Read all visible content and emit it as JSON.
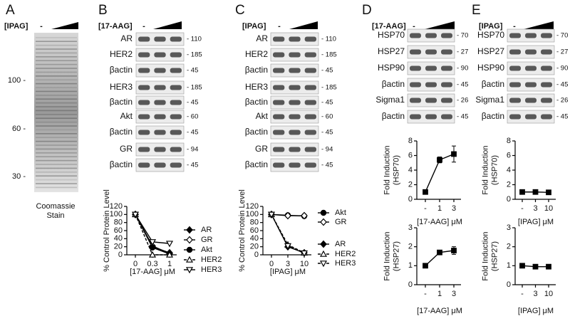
{
  "panel_a": {
    "letter": "A",
    "treatment": "[IPAG]",
    "control": "-",
    "markers": [
      "100 -",
      "60 -",
      "30 -"
    ],
    "caption": [
      "Coomassie",
      "Stain"
    ]
  },
  "panel_b": {
    "letter": "B",
    "treatment": "[17-AAG]",
    "control": "-",
    "blots": [
      {
        "label": "AR",
        "mw": "- 110"
      },
      {
        "label": "HER2",
        "mw": "- 185"
      },
      {
        "label": "βactin",
        "mw": "- 45"
      },
      {
        "label": "HER3",
        "mw": "- 185"
      },
      {
        "label": "βactin",
        "mw": "- 45"
      },
      {
        "label": "Akt",
        "mw": "- 60"
      },
      {
        "label": "βactin",
        "mw": "- 45"
      },
      {
        "label": "GR",
        "mw": "- 94"
      },
      {
        "label": "βactin",
        "mw": "- 45"
      }
    ]
  },
  "panel_c": {
    "letter": "C",
    "treatment": "[IPAG]",
    "control": "-",
    "blots": [
      {
        "label": "AR",
        "mw": "- 110"
      },
      {
        "label": "HER2",
        "mw": "- 185"
      },
      {
        "label": "βactin",
        "mw": "- 45"
      },
      {
        "label": "HER3",
        "mw": "- 185"
      },
      {
        "label": "βactin",
        "mw": "- 45"
      },
      {
        "label": "Akt",
        "mw": "- 60"
      },
      {
        "label": "βactin",
        "mw": "- 45"
      },
      {
        "label": "GR",
        "mw": "- 94"
      },
      {
        "label": "βactin",
        "mw": "- 45"
      }
    ]
  },
  "panel_d": {
    "letter": "D",
    "treatment": "[17-AAG]",
    "control": "-",
    "blots": [
      {
        "label": "HSP70",
        "mw": "- 70"
      },
      {
        "label": "HSP27",
        "mw": "- 27"
      },
      {
        "label": "HSP90",
        "mw": "- 90"
      },
      {
        "label": "βactin",
        "mw": "- 45"
      },
      {
        "label": "Sigma1",
        "mw": "- 26"
      },
      {
        "label": "βactin",
        "mw": "- 45"
      }
    ]
  },
  "panel_e": {
    "letter": "E",
    "treatment": "[IPAG]",
    "control": "-",
    "blots": [
      {
        "label": "HSP70",
        "mw": "- 70"
      },
      {
        "label": "HSP27",
        "mw": "- 27"
      },
      {
        "label": "HSP90",
        "mw": "- 90"
      },
      {
        "label": "βactin",
        "mw": "- 45"
      },
      {
        "label": "Sigma1",
        "mw": "- 26"
      },
      {
        "label": "βactin",
        "mw": "- 45"
      }
    ]
  },
  "chart_data": [
    {
      "type": "line",
      "ylabel": "% Control Protein Level",
      "xlabel": "[17-AAG] μM",
      "categories": [
        "0",
        "0.3",
        "1"
      ],
      "ylim": [
        0,
        120
      ],
      "yticks": [
        0,
        20,
        40,
        60,
        80,
        100,
        120
      ],
      "series": [
        {
          "name": "AR",
          "color": "#000000",
          "marker": "diamond",
          "filled": true,
          "dashed": false,
          "values": [
            100,
            20,
            5
          ]
        },
        {
          "name": "GR",
          "color": "#000000",
          "marker": "diamond",
          "filled": false,
          "dashed": false,
          "values": [
            100,
            22,
            3
          ]
        },
        {
          "name": "Akt",
          "color": "#000000",
          "marker": "circle",
          "filled": true,
          "dashed": false,
          "values": [
            100,
            18,
            2
          ]
        },
        {
          "name": "HER2",
          "color": "#000000",
          "marker": "triangle",
          "filled": false,
          "dashed": true,
          "values": [
            100,
            0,
            0
          ]
        },
        {
          "name": "HER3",
          "color": "#000000",
          "marker": "triangle-down",
          "filled": false,
          "dashed": false,
          "values": [
            100,
            32,
            28
          ]
        }
      ]
    },
    {
      "type": "line",
      "ylabel": "% Control Protein Level",
      "xlabel": "[IPAG] μM",
      "categories": [
        "0",
        "3",
        "10"
      ],
      "ylim": [
        0,
        120
      ],
      "yticks": [
        0,
        20,
        40,
        60,
        80,
        100,
        120
      ],
      "series": [
        {
          "name": "Akt",
          "color": "#000000",
          "marker": "circle",
          "filled": true,
          "dashed": false,
          "values": [
            100,
            98,
            96
          ]
        },
        {
          "name": "GR",
          "color": "#000000",
          "marker": "diamond",
          "filled": false,
          "dashed": false,
          "values": [
            100,
            97,
            97
          ]
        },
        {
          "name": "AR",
          "color": "#000000",
          "marker": "diamond",
          "filled": true,
          "dashed": false,
          "values": [
            100,
            20,
            5
          ]
        },
        {
          "name": "HER2",
          "color": "#000000",
          "marker": "triangle",
          "filled": false,
          "dashed": true,
          "values": [
            100,
            25,
            5
          ]
        },
        {
          "name": "HER3",
          "color": "#000000",
          "marker": "triangle-down",
          "filled": false,
          "dashed": true,
          "values": [
            100,
            22,
            4
          ]
        }
      ]
    },
    {
      "type": "line",
      "ylabel": [
        "Fold Induction",
        "(HSP70)"
      ],
      "xlabel": "[17-AAG] μM",
      "categories": [
        "-",
        "1",
        "3"
      ],
      "ylim": [
        0,
        8
      ],
      "yticks": [
        0,
        2,
        4,
        6,
        8
      ],
      "series": [
        {
          "color": "#000000",
          "marker": "square",
          "filled": true,
          "dashed": false,
          "values": [
            1,
            5.4,
            6.2
          ],
          "errors": [
            0,
            0.4,
            1.1
          ]
        }
      ]
    },
    {
      "type": "line",
      "ylabel": [
        "Fold Induction",
        "(HSP27)"
      ],
      "xlabel": "[17-AAG] μM",
      "categories": [
        "-",
        "1",
        "3"
      ],
      "ylim": [
        0,
        3
      ],
      "yticks": [
        0,
        1,
        2,
        3
      ],
      "series": [
        {
          "color": "#000000",
          "marker": "square",
          "filled": true,
          "dashed": false,
          "values": [
            1,
            1.7,
            1.8
          ],
          "errors": [
            0,
            0.05,
            0.2
          ]
        }
      ]
    },
    {
      "type": "line",
      "ylabel": [
        "Fold Induction",
        "(HSP70)"
      ],
      "xlabel": "[IPAG] μM",
      "categories": [
        "-",
        "3",
        "10"
      ],
      "ylim": [
        0,
        8
      ],
      "yticks": [
        0,
        2,
        4,
        6,
        8
      ],
      "series": [
        {
          "color": "#000000",
          "marker": "square",
          "filled": true,
          "dashed": false,
          "values": [
            1,
            1,
            0.95
          ],
          "errors": [
            0,
            0.05,
            0.05
          ]
        }
      ]
    },
    {
      "type": "line",
      "ylabel": [
        "Fold Induction",
        "(HSP27)"
      ],
      "xlabel": "[IPAG] μM",
      "categories": [
        "-",
        "3",
        "10"
      ],
      "ylim": [
        0,
        3
      ],
      "yticks": [
        0,
        1,
        2,
        3
      ],
      "series": [
        {
          "color": "#000000",
          "marker": "square",
          "filled": true,
          "dashed": false,
          "values": [
            1,
            0.95,
            0.95
          ],
          "errors": [
            0,
            0.05,
            0.05
          ]
        }
      ]
    }
  ]
}
